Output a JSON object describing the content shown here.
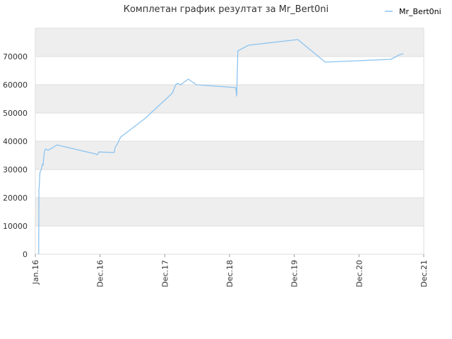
{
  "chart_data": {
    "type": "line",
    "title": "Комплетан график резултат за Mr_Bert0ni",
    "xlabel": "",
    "ylabel": "",
    "legend_position": "top-right",
    "grid": true,
    "band_colors": [
      "#eeeeee",
      "#ffffff"
    ],
    "line_color": "#8cc4f0",
    "x_ticks": [
      "Jan.16",
      "Dec.16",
      "Dec.17",
      "Dec.18",
      "Dec.19",
      "Dec.20",
      "Dec.21"
    ],
    "x_range": [
      "2016-01",
      "2021-12"
    ],
    "ylim": [
      0,
      80000
    ],
    "y_ticks": [
      0,
      10000,
      20000,
      30000,
      40000,
      50000,
      60000,
      70000
    ],
    "series": [
      {
        "name": "Mr_Bert0ni",
        "x": [
          "2016-01-20",
          "2016-01-21",
          "2016-01-23",
          "2016-01-25",
          "2016-01-27",
          "2016-02-03",
          "2016-02-06",
          "2016-02-10",
          "2016-02-13",
          "2016-02-18",
          "2016-02-23",
          "2016-03-01",
          "2016-03-10",
          "2016-04-01",
          "2016-05-01",
          "2016-12-01",
          "2016-12-10",
          "2016-12-20",
          "2017-03-15",
          "2017-03-20",
          "2017-04-01",
          "2017-04-20",
          "2017-09-01",
          "2018-02-01",
          "2018-02-20",
          "2018-03-01",
          "2018-03-20",
          "2018-05-01",
          "2018-06-15",
          "2019-01-20",
          "2019-01-25",
          "2019-02-01",
          "2019-04-01",
          "2020-01-01",
          "2020-06-01",
          "2021-06-01",
          "2021-07-01",
          "2021-07-15",
          "2021-08-10"
        ],
        "values": [
          0,
          23000,
          24000,
          27000,
          29000,
          30000,
          31000,
          32000,
          31500,
          35000,
          37000,
          37200,
          36800,
          37500,
          38700,
          35500,
          35200,
          36200,
          36000,
          37800,
          39000,
          41500,
          48000,
          57000,
          60000,
          60500,
          60000,
          62000,
          60000,
          59000,
          56000,
          72000,
          74000,
          76000,
          68000,
          69000,
          70000,
          70500,
          71000
        ],
        "values_note_removed": true
      }
    ]
  }
}
